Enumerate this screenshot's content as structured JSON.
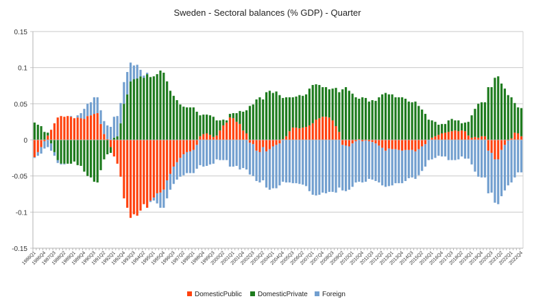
{
  "chart_data": {
    "type": "bar",
    "stacked": true,
    "title": "Sweden - Sectoral balances (% GDP) - Quarter",
    "xlabel": "",
    "ylabel": "",
    "ylim": [
      -0.15,
      0.15
    ],
    "yticks": [
      "0.15",
      "0.1",
      "0.05",
      "0",
      "-0.05",
      "-0.1",
      "-0.15"
    ],
    "ytick_values": [
      0.15,
      0.1,
      0.05,
      0,
      -0.05,
      -0.1,
      -0.15
    ],
    "grid": true,
    "legend_position": "bottom",
    "categories": [
      "1986Q1",
      "1986Q2",
      "1986Q3",
      "1986Q4",
      "1987Q1",
      "1987Q2",
      "1987Q3",
      "1987Q4",
      "1988Q1",
      "1988Q2",
      "1988Q3",
      "1988Q4",
      "1989Q1",
      "1989Q2",
      "1989Q3",
      "1989Q4",
      "1990Q1",
      "1990Q2",
      "1990Q3",
      "1990Q4",
      "1991Q1",
      "1991Q2",
      "1991Q3",
      "1991Q4",
      "1992Q1",
      "1992Q2",
      "1992Q3",
      "1992Q4",
      "1993Q1",
      "1993Q2",
      "1993Q3",
      "1993Q4",
      "1994Q1",
      "1994Q2",
      "1994Q3",
      "1994Q4",
      "1995Q1",
      "1995Q2",
      "1995Q3",
      "1995Q4",
      "1996Q1",
      "1996Q2",
      "1996Q3",
      "1996Q4",
      "1997Q1",
      "1997Q2",
      "1997Q3",
      "1997Q4",
      "1998Q1",
      "1998Q2",
      "1998Q3",
      "1998Q4",
      "1999Q1",
      "1999Q2",
      "1999Q3",
      "1999Q4",
      "2000Q1",
      "2000Q2",
      "2000Q3",
      "2000Q4",
      "2001Q1",
      "2001Q2",
      "2001Q3",
      "2001Q4",
      "2002Q1",
      "2002Q2",
      "2002Q3",
      "2002Q4",
      "2003Q1",
      "2003Q2",
      "2003Q3",
      "2003Q4",
      "2004Q1",
      "2004Q2",
      "2004Q3",
      "2004Q4",
      "2005Q1",
      "2005Q2",
      "2005Q3",
      "2005Q4",
      "2006Q1",
      "2006Q2",
      "2006Q3",
      "2006Q4",
      "2007Q1",
      "2007Q2",
      "2007Q3",
      "2007Q4",
      "2008Q1",
      "2008Q2",
      "2008Q3",
      "2008Q4",
      "2009Q1",
      "2009Q2",
      "2009Q3",
      "2009Q4",
      "2010Q1",
      "2010Q2",
      "2010Q3",
      "2010Q4",
      "2011Q1",
      "2011Q2",
      "2011Q3",
      "2011Q4",
      "2012Q1",
      "2012Q2",
      "2012Q3",
      "2012Q4",
      "2013Q1",
      "2013Q2",
      "2013Q3",
      "2013Q4",
      "2014Q1",
      "2014Q2",
      "2014Q3",
      "2014Q4",
      "2015Q1",
      "2015Q2",
      "2015Q3",
      "2015Q4",
      "2016Q1",
      "2016Q2",
      "2016Q3",
      "2016Q4",
      "2017Q1",
      "2017Q2",
      "2017Q3",
      "2017Q4",
      "2018Q1",
      "2018Q2",
      "2018Q3",
      "2018Q4",
      "2019Q1",
      "2019Q2",
      "2019Q3",
      "2019Q4",
      "2020Q1",
      "2020Q2",
      "2020Q3",
      "2020Q4",
      "2021Q1",
      "2021Q2",
      "2021Q3",
      "2021Q4",
      "2022Q1",
      "2022Q2",
      "2022Q3",
      "2022Q4"
    ],
    "series": [
      {
        "name": "DomesticPublic",
        "color": "#ff420e",
        "values": [
          -0.024,
          -0.017,
          -0.01,
          -0.002,
          0.006,
          0.014,
          0.023,
          0.031,
          0.033,
          0.032,
          0.033,
          0.032,
          0.03,
          0.031,
          0.03,
          0.029,
          0.033,
          0.034,
          0.036,
          0.037,
          0.022,
          0.008,
          0.001,
          -0.01,
          -0.023,
          -0.033,
          -0.051,
          -0.081,
          -0.094,
          -0.108,
          -0.103,
          -0.105,
          -0.098,
          -0.089,
          -0.094,
          -0.084,
          -0.08,
          -0.074,
          -0.073,
          -0.069,
          -0.056,
          -0.047,
          -0.037,
          -0.031,
          -0.025,
          -0.02,
          -0.017,
          -0.016,
          -0.014,
          -0.007,
          0.005,
          0.008,
          0.009,
          0.007,
          0.004,
          0.006,
          0.013,
          0.02,
          0.024,
          0.031,
          0.03,
          0.025,
          0.022,
          0.013,
          0.009,
          -0.004,
          -0.006,
          -0.015,
          -0.017,
          -0.01,
          -0.016,
          -0.013,
          -0.009,
          -0.007,
          -0.005,
          0.001,
          0.005,
          0.012,
          0.017,
          0.017,
          0.016,
          0.017,
          0.018,
          0.02,
          0.023,
          0.028,
          0.03,
          0.032,
          0.032,
          0.031,
          0.027,
          0.019,
          0.011,
          -0.007,
          -0.008,
          -0.009,
          -0.005,
          -0.002,
          0.001,
          -0.002,
          -0.001,
          -0.002,
          -0.003,
          -0.005,
          -0.008,
          -0.011,
          -0.015,
          -0.012,
          -0.013,
          -0.013,
          -0.014,
          -0.015,
          -0.014,
          -0.014,
          -0.014,
          -0.016,
          -0.013,
          -0.009,
          -0.006,
          0.0,
          0.003,
          0.005,
          0.007,
          0.009,
          0.01,
          0.011,
          0.012,
          0.013,
          0.012,
          0.013,
          0.012,
          0.006,
          0.003,
          0.004,
          0.003,
          0.005,
          0.005,
          -0.015,
          -0.018,
          -0.027,
          -0.027,
          -0.014,
          -0.007,
          -0.001,
          0.002,
          0.01,
          0.009,
          0.005
        ]
      },
      {
        "name": "DomesticPrivate",
        "color": "#1e7b1e",
        "values": [
          0.024,
          0.021,
          0.019,
          0.011,
          0.004,
          -0.005,
          -0.017,
          -0.028,
          -0.033,
          -0.033,
          -0.033,
          -0.033,
          -0.03,
          -0.035,
          -0.036,
          -0.044,
          -0.05,
          -0.052,
          -0.058,
          -0.059,
          -0.042,
          -0.027,
          -0.02,
          -0.008,
          0.003,
          0.005,
          0.023,
          0.05,
          0.063,
          0.081,
          0.084,
          0.085,
          0.088,
          0.086,
          0.091,
          0.087,
          0.088,
          0.091,
          0.096,
          0.093,
          0.081,
          0.068,
          0.061,
          0.055,
          0.049,
          0.046,
          0.045,
          0.045,
          0.045,
          0.039,
          0.029,
          0.027,
          0.026,
          0.027,
          0.028,
          0.021,
          0.014,
          0.008,
          0.003,
          0.005,
          0.007,
          0.012,
          0.018,
          0.026,
          0.032,
          0.047,
          0.049,
          0.056,
          0.059,
          0.056,
          0.066,
          0.068,
          0.065,
          0.067,
          0.062,
          0.057,
          0.054,
          0.047,
          0.042,
          0.043,
          0.046,
          0.044,
          0.045,
          0.051,
          0.053,
          0.049,
          0.046,
          0.041,
          0.041,
          0.039,
          0.044,
          0.053,
          0.055,
          0.07,
          0.073,
          0.068,
          0.064,
          0.059,
          0.056,
          0.059,
          0.058,
          0.053,
          0.055,
          0.054,
          0.059,
          0.063,
          0.065,
          0.063,
          0.063,
          0.059,
          0.059,
          0.059,
          0.057,
          0.053,
          0.052,
          0.053,
          0.047,
          0.042,
          0.036,
          0.028,
          0.024,
          0.02,
          0.014,
          0.013,
          0.012,
          0.016,
          0.017,
          0.014,
          0.015,
          0.01,
          0.012,
          0.019,
          0.031,
          0.039,
          0.047,
          0.047,
          0.047,
          0.073,
          0.073,
          0.086,
          0.088,
          0.078,
          0.071,
          0.062,
          0.057,
          0.041,
          0.036,
          0.039
        ]
      },
      {
        "name": "Foreign",
        "color": "#729fcf",
        "values": [
          -0.001,
          -0.005,
          -0.009,
          -0.01,
          -0.01,
          -0.01,
          -0.005,
          -0.004,
          -0.001,
          -0.001,
          0.0,
          0.001,
          0.0,
          0.003,
          0.007,
          0.014,
          0.017,
          0.018,
          0.023,
          0.022,
          0.019,
          0.018,
          0.019,
          0.018,
          0.029,
          0.028,
          0.028,
          0.03,
          0.031,
          0.026,
          0.019,
          0.019,
          0.009,
          0.003,
          0.002,
          -0.002,
          -0.004,
          -0.014,
          -0.021,
          -0.025,
          -0.025,
          -0.022,
          -0.024,
          -0.024,
          -0.026,
          -0.029,
          -0.029,
          -0.03,
          -0.032,
          -0.033,
          -0.035,
          -0.037,
          -0.036,
          -0.034,
          -0.033,
          -0.027,
          -0.028,
          -0.028,
          -0.028,
          -0.037,
          -0.037,
          -0.036,
          -0.041,
          -0.039,
          -0.041,
          -0.044,
          -0.044,
          -0.042,
          -0.042,
          -0.046,
          -0.05,
          -0.056,
          -0.058,
          -0.06,
          -0.058,
          -0.058,
          -0.059,
          -0.059,
          -0.06,
          -0.06,
          -0.061,
          -0.062,
          -0.064,
          -0.071,
          -0.076,
          -0.077,
          -0.076,
          -0.073,
          -0.074,
          -0.072,
          -0.072,
          -0.073,
          -0.066,
          -0.063,
          -0.063,
          -0.06,
          -0.06,
          -0.057,
          -0.058,
          -0.057,
          -0.057,
          -0.052,
          -0.052,
          -0.052,
          -0.051,
          -0.052,
          -0.05,
          -0.052,
          -0.05,
          -0.047,
          -0.046,
          -0.045,
          -0.043,
          -0.039,
          -0.038,
          -0.038,
          -0.036,
          -0.034,
          -0.031,
          -0.028,
          -0.027,
          -0.025,
          -0.022,
          -0.023,
          -0.023,
          -0.028,
          -0.028,
          -0.028,
          -0.027,
          -0.023,
          -0.026,
          -0.026,
          -0.034,
          -0.044,
          -0.051,
          -0.052,
          -0.052,
          -0.059,
          -0.055,
          -0.06,
          -0.062,
          -0.064,
          -0.063,
          -0.062,
          -0.059,
          -0.052,
          -0.045,
          -0.045
        ]
      }
    ]
  }
}
